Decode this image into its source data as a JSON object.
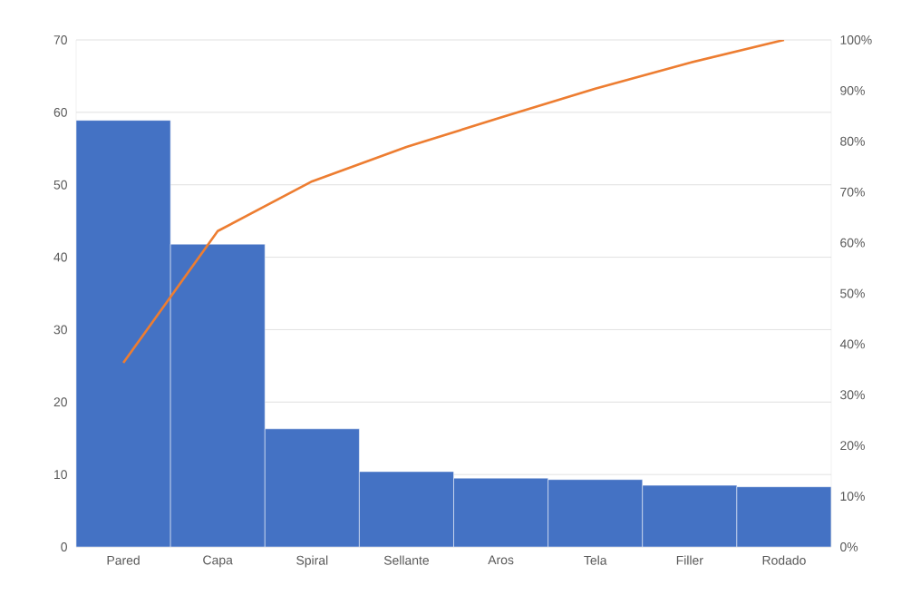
{
  "chart_data": {
    "type": "bar",
    "categories": [
      "Pared",
      "Capa",
      "Spiral",
      "Sellante",
      "Aros",
      "Tela",
      "Filler",
      "Rodado"
    ],
    "series": [
      {
        "color": "#4472c4",
        "values": [
          58.9,
          41.8,
          16.3,
          10.4,
          9.5,
          9.3,
          8.5,
          8.3
        ]
      },
      {
        "type": "line",
        "axis": "y2",
        "color": "#ed7d31",
        "values": [
          36.3,
          62.3,
          72.1,
          78.9,
          84.7,
          90.4,
          95.5,
          100
        ]
      }
    ],
    "ylim": [
      0,
      70
    ],
    "yticks": [
      0,
      10,
      20,
      30,
      40,
      50,
      60,
      70
    ],
    "y2lim": [
      0,
      100
    ],
    "y2ticks": [
      {
        "value": 0,
        "label": "0%"
      },
      {
        "value": 10,
        "label": "10%"
      },
      {
        "value": 20,
        "label": "20%"
      },
      {
        "value": 30,
        "label": "30%"
      },
      {
        "value": 40,
        "label": "40%"
      },
      {
        "value": 50,
        "label": "50%"
      },
      {
        "value": 60,
        "label": "60%"
      },
      {
        "value": 70,
        "label": "70%"
      },
      {
        "value": 80,
        "label": "80%"
      },
      {
        "value": 90,
        "label": "90%"
      },
      {
        "value": 100,
        "label": "100%"
      }
    ],
    "grid": "y",
    "marker": "none",
    "line_style": "solid"
  }
}
